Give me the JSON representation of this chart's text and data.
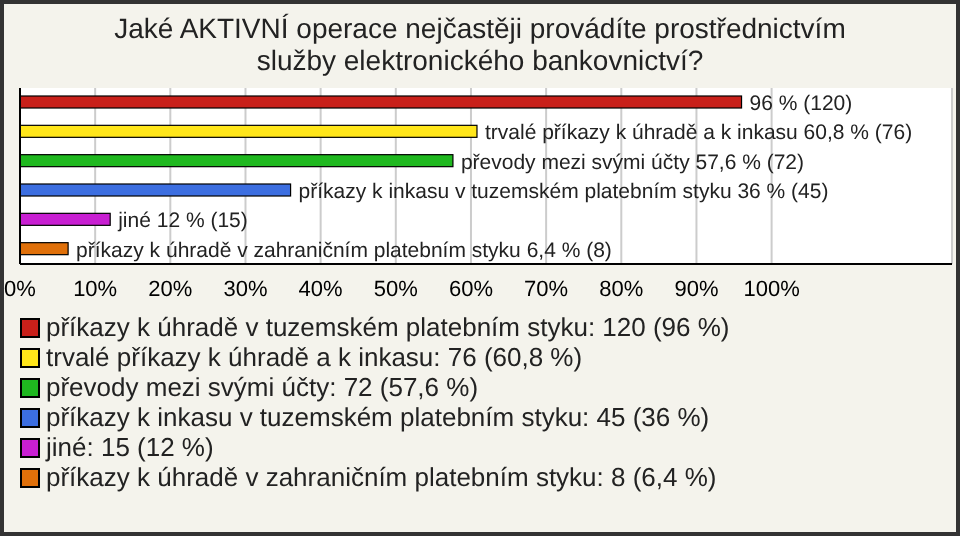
{
  "chart_data": {
    "type": "bar",
    "orientation": "horizontal",
    "stacked": true,
    "title": "Jaké AKTIVNÍ operace nejčastěji provádíte prostřednictvím služby elektronického bankovnictví?",
    "categories": [
      null,
      null,
      null,
      null,
      null,
      null
    ],
    "series": [
      {
        "name": "příkazy k úhradě v tuzemském platebním styku: 120 (96 %)",
        "color": "#c8201a",
        "values": [
          96,
          null,
          null,
          null,
          null,
          null
        ],
        "value_labels": [
          "96 % (120)",
          null,
          null,
          null,
          null,
          null
        ]
      },
      {
        "name": "trvalé příkazy k úhradě a k inkasu: 76 (60,8 %)",
        "color": "#ffe61a",
        "values": [
          null,
          60.8,
          null,
          null,
          null,
          null
        ],
        "value_labels": [
          null,
          "trvalé příkazy k úhradě a k inkasu 60,8 % (76)",
          null,
          null,
          null,
          null
        ]
      },
      {
        "name": "převody mezi svými účty: 72 (57,6 %)",
        "color": "#1fb81f",
        "values": [
          null,
          null,
          57.6,
          null,
          null,
          null
        ],
        "value_labels": [
          null,
          null,
          "převody mezi svými účty 57,6 % (72)",
          null,
          null,
          null
        ]
      },
      {
        "name": "příkazy k inkasu v tuzemském platebním styku: 45 (36 %)",
        "color": "#3c6ee0",
        "values": [
          null,
          null,
          null,
          36,
          null,
          null
        ],
        "value_labels": [
          null,
          null,
          null,
          "příkazy k inkasu v tuzemském platebním styku 36 % (45)",
          null,
          null
        ]
      },
      {
        "name": "jiné: 15 (12 %)",
        "color": "#c81fd2",
        "values": [
          null,
          null,
          null,
          null,
          12,
          null
        ],
        "value_labels": [
          null,
          null,
          null,
          null,
          "jiné 12 % (15)",
          null
        ]
      },
      {
        "name": "příkazy k úhradě v zahraničním platebním styku: 8 (6,4 %)",
        "color": "#e0700a",
        "values": [
          null,
          null,
          null,
          null,
          null,
          6.4
        ],
        "value_labels": [
          null,
          null,
          null,
          null,
          null,
          "příkazy k úhradě v zahraničním platebním styku 6,4 % (8)"
        ]
      }
    ],
    "xlim": [
      0,
      124
    ],
    "xticks": [
      {
        "value": 0,
        "label": "0%"
      },
      {
        "value": 10,
        "label": "10%"
      },
      {
        "value": 20,
        "label": "20%"
      },
      {
        "value": 30,
        "label": "30%"
      },
      {
        "value": 40,
        "label": "40%"
      },
      {
        "value": 50,
        "label": "50%"
      },
      {
        "value": 60,
        "label": "60%"
      },
      {
        "value": 70,
        "label": "70%"
      },
      {
        "value": 80,
        "label": "80%"
      },
      {
        "value": 90,
        "label": "90%"
      },
      {
        "value": 100,
        "label": "100%"
      }
    ],
    "grid": "x",
    "legend": "bottom"
  }
}
